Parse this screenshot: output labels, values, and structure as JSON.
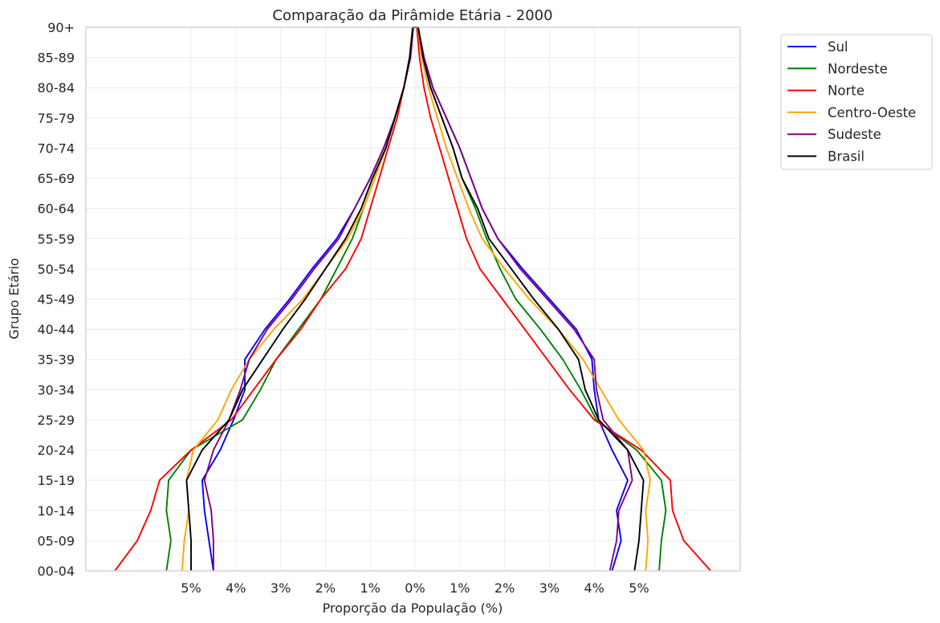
{
  "chart_data": {
    "type": "line",
    "title": "Comparação da Pirâmide Etária - 2000",
    "xlabel": "Proporção da População (%)",
    "ylabel": "Grupo Etário",
    "categories": [
      "00-04",
      "05-09",
      "10-14",
      "15-19",
      "20-24",
      "25-29",
      "30-34",
      "35-39",
      "40-44",
      "45-49",
      "50-54",
      "55-59",
      "60-64",
      "65-69",
      "70-74",
      "75-79",
      "80-84",
      "85-89",
      "90+"
    ],
    "x_tick_values": [
      -5,
      -4,
      -3,
      -2,
      -1,
      0,
      1,
      2,
      3,
      4,
      5
    ],
    "x_tick_labels": [
      "5%",
      "4%",
      "3%",
      "2%",
      "1%",
      "0%",
      "1%",
      "2%",
      "3%",
      "4%",
      "5%"
    ],
    "xlim": [
      -7.3,
      7.3
    ],
    "grid": true,
    "legend_position": "outside-upper-right",
    "series": [
      {
        "name": "Sul",
        "color": "#0000ff",
        "male": [
          -4.5,
          -4.6,
          -4.7,
          -4.75,
          -4.35,
          -4.05,
          -3.8,
          -3.8,
          -3.35,
          -2.8,
          -2.3,
          -1.75,
          -1.35,
          -1.0,
          -0.7,
          -0.45,
          -0.25,
          -0.1,
          -0.04
        ],
        "female": [
          4.4,
          4.6,
          4.5,
          4.75,
          4.4,
          4.1,
          4.0,
          3.95,
          3.6,
          3.0,
          2.4,
          1.85,
          1.5,
          1.25,
          1.0,
          0.7,
          0.4,
          0.2,
          0.07
        ]
      },
      {
        "name": "Nordeste",
        "color": "#008000",
        "male": [
          -5.55,
          -5.45,
          -5.55,
          -5.5,
          -5.0,
          -3.85,
          -3.45,
          -3.1,
          -2.6,
          -2.1,
          -1.75,
          -1.4,
          -1.15,
          -0.9,
          -0.65,
          -0.45,
          -0.25,
          -0.12,
          -0.05
        ],
        "female": [
          5.45,
          5.5,
          5.6,
          5.5,
          4.95,
          4.05,
          3.7,
          3.3,
          2.8,
          2.25,
          1.9,
          1.6,
          1.35,
          1.05,
          0.85,
          0.6,
          0.35,
          0.18,
          0.07
        ]
      },
      {
        "name": "Norte",
        "color": "#ff0000",
        "male": [
          -6.7,
          -6.2,
          -5.9,
          -5.7,
          -5.0,
          -4.1,
          -3.6,
          -3.1,
          -2.55,
          -2.1,
          -1.55,
          -1.2,
          -1.0,
          -0.8,
          -0.6,
          -0.4,
          -0.25,
          -0.12,
          -0.05
        ],
        "female": [
          6.6,
          6.0,
          5.75,
          5.7,
          5.05,
          4.0,
          3.45,
          2.95,
          2.45,
          1.95,
          1.45,
          1.15,
          0.95,
          0.75,
          0.55,
          0.35,
          0.2,
          0.1,
          0.04
        ]
      },
      {
        "name": "Centro-Oeste",
        "color": "#ffa500",
        "male": [
          -5.2,
          -5.15,
          -5.05,
          -5.1,
          -4.95,
          -4.4,
          -4.1,
          -3.7,
          -3.15,
          -2.5,
          -2.0,
          -1.5,
          -1.15,
          -0.9,
          -0.65,
          -0.45,
          -0.25,
          -0.12,
          -0.05
        ],
        "female": [
          5.15,
          5.2,
          5.15,
          5.25,
          5.1,
          4.55,
          4.15,
          3.75,
          3.2,
          2.55,
          2.0,
          1.5,
          1.2,
          0.95,
          0.7,
          0.5,
          0.3,
          0.15,
          0.06
        ]
      },
      {
        "name": "Sudeste",
        "color": "#800080",
        "male": [
          -4.5,
          -4.5,
          -4.55,
          -4.7,
          -4.5,
          -4.15,
          -3.9,
          -3.7,
          -3.3,
          -2.75,
          -2.25,
          -1.7,
          -1.35,
          -1.0,
          -0.7,
          -0.45,
          -0.25,
          -0.1,
          -0.04
        ],
        "female": [
          4.35,
          4.5,
          4.55,
          4.85,
          4.75,
          4.2,
          4.05,
          4.0,
          3.55,
          2.95,
          2.35,
          1.85,
          1.5,
          1.25,
          1.0,
          0.7,
          0.4,
          0.2,
          0.07
        ]
      },
      {
        "name": "Brasil",
        "color": "#000000",
        "male": [
          -5.0,
          -5.0,
          -5.05,
          -5.1,
          -4.75,
          -4.15,
          -3.85,
          -3.4,
          -2.95,
          -2.45,
          -2.0,
          -1.55,
          -1.2,
          -0.95,
          -0.65,
          -0.45,
          -0.25,
          -0.12,
          -0.05
        ],
        "female": [
          4.9,
          5.0,
          5.05,
          5.1,
          4.75,
          4.1,
          3.8,
          3.65,
          3.2,
          2.65,
          2.15,
          1.65,
          1.4,
          1.05,
          0.85,
          0.6,
          0.35,
          0.18,
          0.07
        ]
      }
    ]
  }
}
